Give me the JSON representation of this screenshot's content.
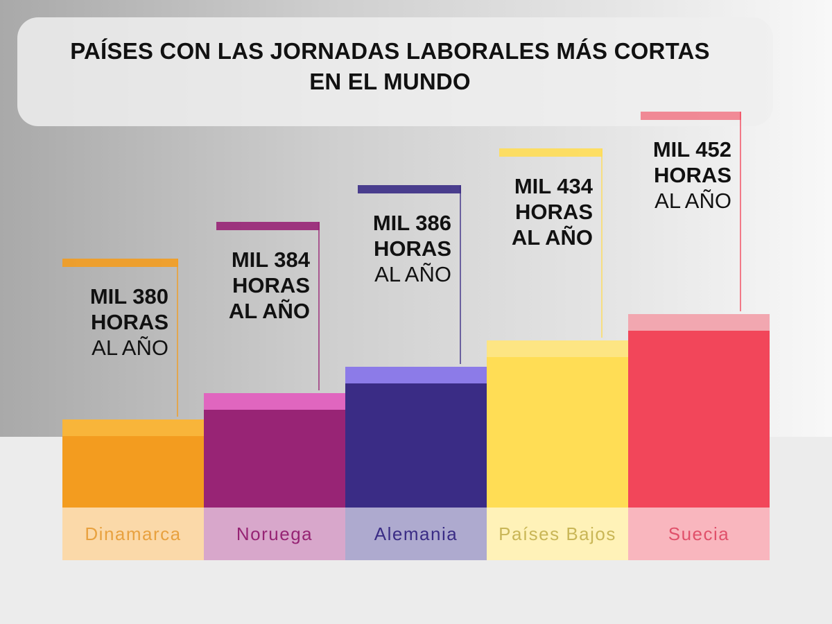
{
  "chart_data": {
    "type": "bar",
    "title": "PAÍSES CON LAS JORNADAS LABORALES MÁS CORTAS EN EL MUNDO",
    "title_lines": [
      "PAÍSES CON LAS JORNADAS LABORALES MÁS CORTAS",
      "EN EL MUNDO"
    ],
    "categories": [
      "Dinamarca",
      "Noruega",
      "Alemania",
      "Países Bajos",
      "Suecia"
    ],
    "values": [
      1380,
      1384,
      1386,
      1434,
      1452
    ],
    "unit": "horas al año",
    "data_labels": [
      [
        "MIL 380",
        "HORAS",
        "AL AÑO"
      ],
      [
        "MIL 384",
        "HORAS",
        "AL AÑO"
      ],
      [
        "MIL 386",
        "HORAS",
        "AL AÑO"
      ],
      [
        "MIL 434",
        "HORAS",
        "AL AÑO"
      ],
      [
        "MIL 452",
        "HORAS",
        "AL AÑO"
      ]
    ],
    "colors": {
      "bar": [
        "#f39c1f",
        "#982475",
        "#3a2c85",
        "#ffdd55",
        "#f2465a"
      ],
      "cap": [
        "#f8b53a",
        "#e066bf",
        "#8c7be8",
        "#fde583",
        "#f2a7b0"
      ],
      "label_bg": [
        "#fbd9a9",
        "#d8a7cb",
        "#aeaacf",
        "#fff2b8",
        "#f9b6be"
      ],
      "label_text": [
        "#e8a13f",
        "#962474",
        "#3a2c85",
        "#c9b656",
        "#e0506a"
      ]
    },
    "grid": false,
    "legend": "none"
  }
}
